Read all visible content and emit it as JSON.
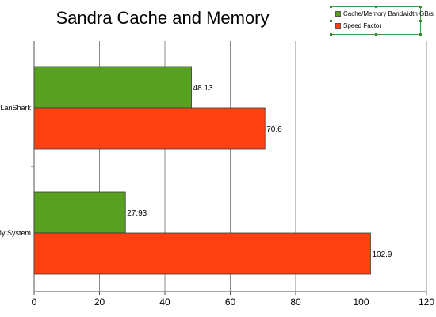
{
  "chart_data": {
    "type": "bar",
    "orientation": "horizontal",
    "title": "Sandra Cache and Memory",
    "categories": [
      "LanShark",
      "My System"
    ],
    "series": [
      {
        "name": "Cache/Memory Bandwidth GB/s",
        "values": [
          48.13,
          27.93
        ],
        "labels": [
          "48.13",
          "27.93"
        ],
        "color": "#58a020"
      },
      {
        "name": "Speed Factor",
        "values": [
          70.6,
          102.9
        ],
        "labels": [
          "70.6",
          "102.9"
        ],
        "color": "#ff4010"
      }
    ],
    "xlim": [
      0,
      120
    ],
    "xticks": [
      "0",
      "20",
      "40",
      "60",
      "80",
      "100",
      "120"
    ],
    "xticks_values": [
      0,
      20,
      40,
      60,
      80,
      100,
      120
    ],
    "grid": true,
    "legend_position": "top-right"
  }
}
